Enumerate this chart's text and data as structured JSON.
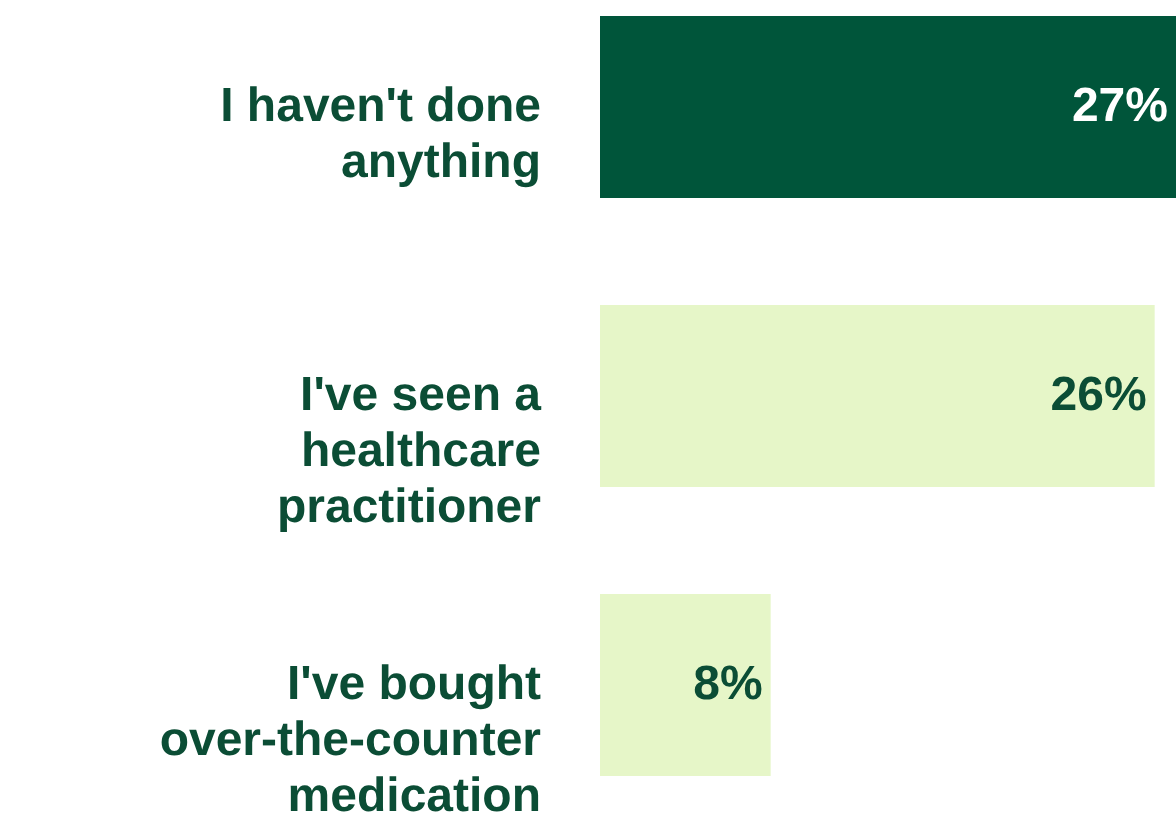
{
  "chart_data": {
    "type": "bar",
    "orientation": "horizontal",
    "categories": [
      "I haven't done anything",
      "I've seen a healthcare practitioner",
      "I've bought over-the-counter medication"
    ],
    "values": [
      27,
      26,
      8
    ],
    "colors": [
      "#00553a",
      "#e6f6c8",
      "#e6f6c8"
    ],
    "value_labels": [
      "27%",
      "26%",
      "8%"
    ]
  }
}
